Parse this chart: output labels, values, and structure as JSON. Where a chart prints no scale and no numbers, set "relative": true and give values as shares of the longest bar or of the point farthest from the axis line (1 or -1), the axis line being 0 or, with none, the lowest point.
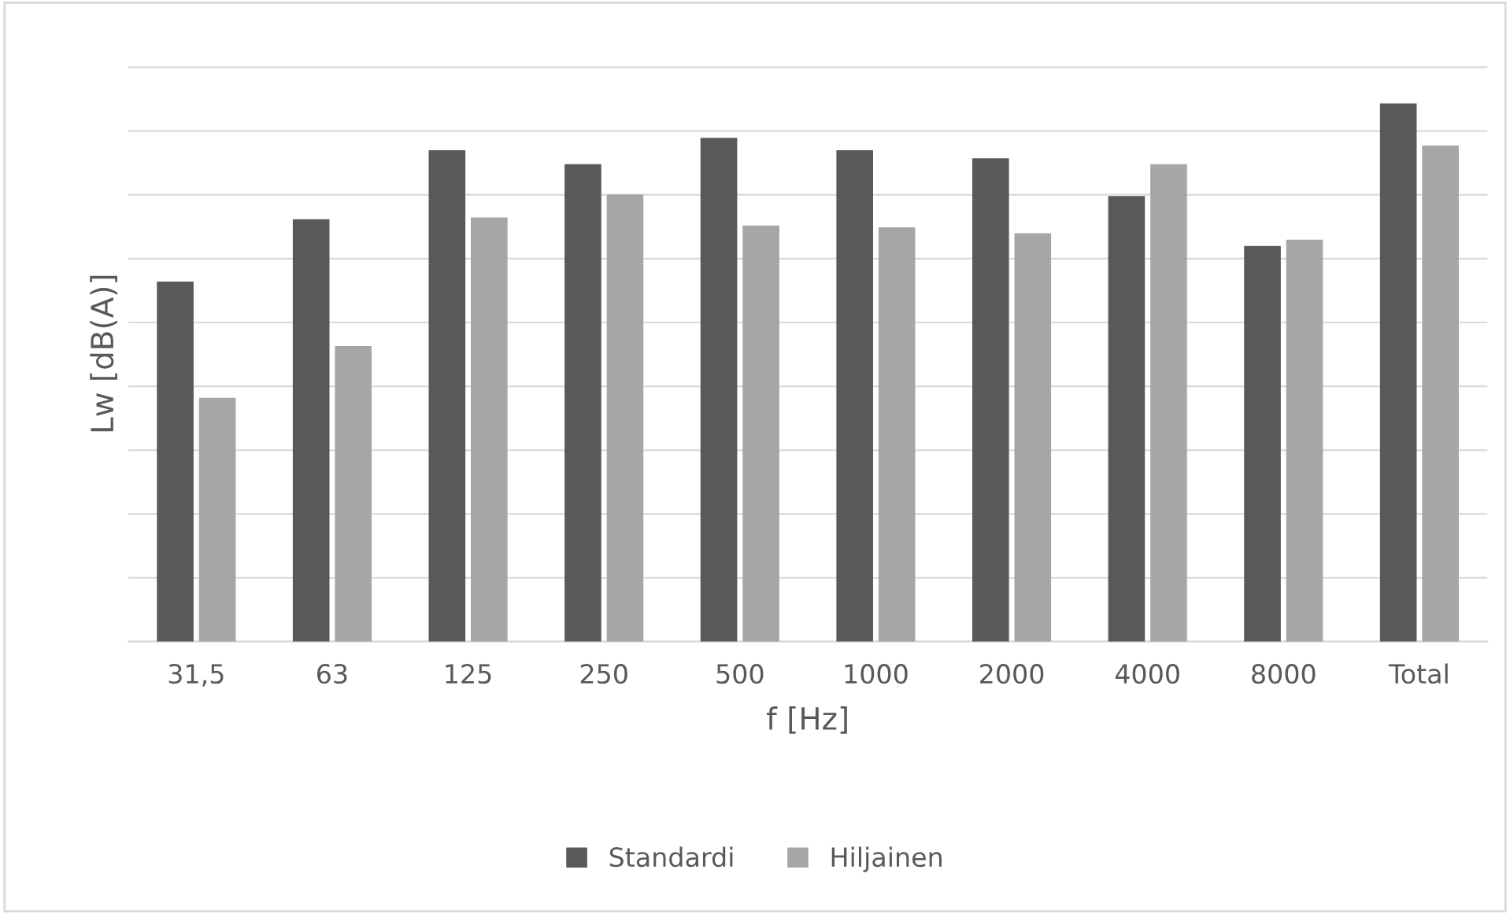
{
  "chart_data": {
    "type": "bar",
    "xlabel": "f [Hz]",
    "ylabel": "Lw [dB(A)]",
    "categories": [
      "31,5",
      "63",
      "125",
      "250",
      "500",
      "1000",
      "2000",
      "4000",
      "8000",
      "Total"
    ],
    "relative": true,
    "grid": "y",
    "legend": "bottom",
    "series": [
      {
        "name": "Standardi",
        "color": "#595959",
        "values": [
          0.669,
          0.785,
          0.913,
          0.887,
          0.936,
          0.913,
          0.898,
          0.828,
          0.735,
          1
        ]
      },
      {
        "name": "Hiljainen",
        "color": "#a6a6a6",
        "values": [
          0.453,
          0.549,
          0.788,
          0.831,
          0.773,
          0.77,
          0.759,
          0.887,
          0.747,
          0.922
        ]
      }
    ]
  }
}
